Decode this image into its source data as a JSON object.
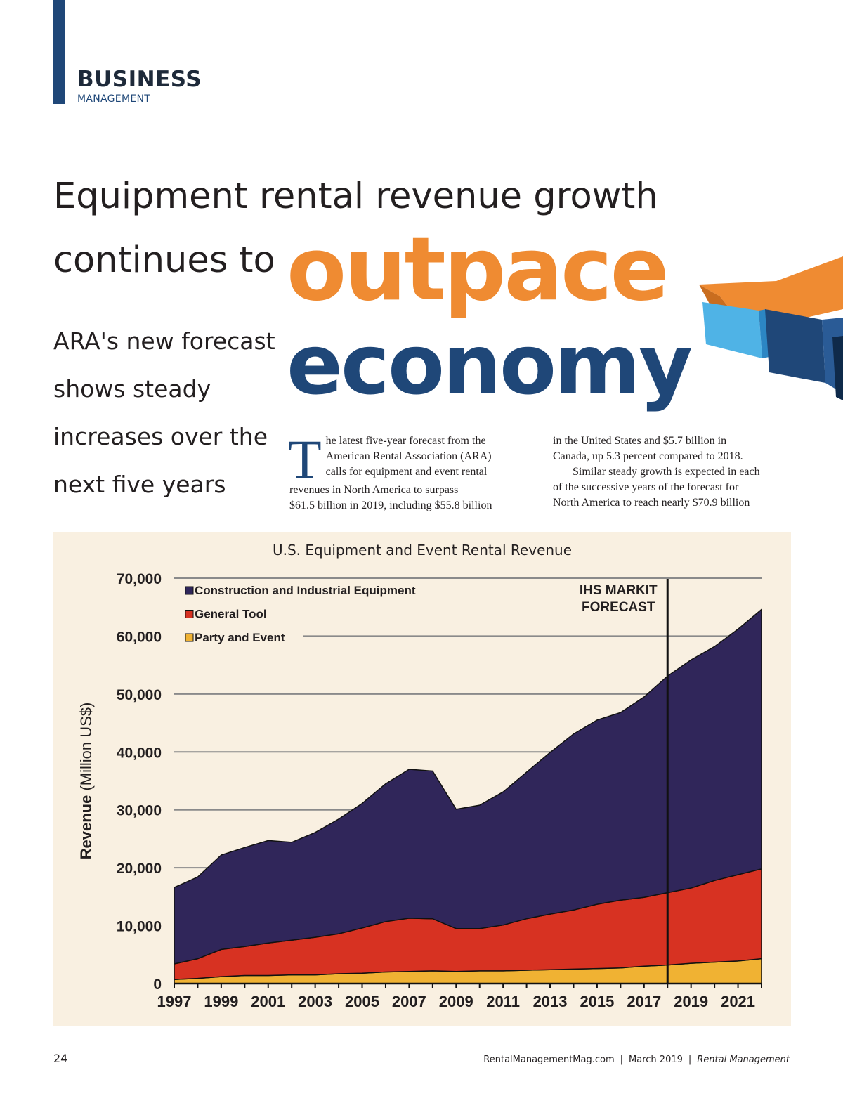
{
  "section": {
    "main": "BUSINESS",
    "sub": "MANAGEMENT"
  },
  "headline": {
    "line1": "Equipment rental revenue growth",
    "line2_prefix": "continues to",
    "highlight_orange": "outpace",
    "highlight_blue": "economy"
  },
  "deck": [
    "ARA's new forecast",
    "shows steady",
    "increases over the",
    "next five years"
  ],
  "body": {
    "dropcap": "T",
    "col1": [
      "he latest five-year forecast from the",
      "American Rental Association (ARA)",
      "calls for equipment and event rental",
      "revenues in North America to surpass",
      "$61.5 billion in 2019, including $55.8 billion"
    ],
    "col2": [
      "in the United States and $5.7 billion in",
      "Canada, up 5.3 percent compared to 2018.",
      "Similar steady growth is expected in each",
      "of the successive years of the forecast for",
      "North America to reach nearly $70.9 billion"
    ]
  },
  "chart_data": {
    "type": "area",
    "stacked": true,
    "title": "U.S. Equipment and Event Rental Revenue",
    "ylabel_bold": "Revenue",
    "ylabel_rest": "(Million US$)",
    "xlabel": "",
    "ylim": [
      0,
      70000
    ],
    "yticks": [
      0,
      10000,
      20000,
      30000,
      40000,
      50000,
      60000,
      70000
    ],
    "ytick_labels": [
      "0",
      "10,000",
      "20,000",
      "30,000",
      "40,000",
      "50,000",
      "60,000",
      "70,000"
    ],
    "xlim": [
      1997,
      2022
    ],
    "xtick_labels": [
      "1997",
      "1999",
      "2001",
      "2003",
      "2005",
      "2007",
      "2009",
      "2011",
      "2013",
      "2015",
      "2017",
      "2019",
      "2021"
    ],
    "grid": true,
    "legend_position": "top-left",
    "x": [
      1997,
      1998,
      1999,
      2000,
      2001,
      2002,
      2003,
      2004,
      2005,
      2006,
      2007,
      2008,
      2009,
      2010,
      2011,
      2012,
      2013,
      2014,
      2015,
      2016,
      2017,
      2018,
      2019,
      2020,
      2021,
      2022
    ],
    "series": [
      {
        "name": "Party and Event",
        "color": "#f0b233",
        "values": [
          700,
          900,
          1200,
          1400,
          1400,
          1500,
          1500,
          1700,
          1800,
          2000,
          2100,
          2200,
          2100,
          2200,
          2200,
          2300,
          2400,
          2500,
          2600,
          2700,
          3000,
          3200,
          3500,
          3700,
          3900,
          4300
        ]
      },
      {
        "name": "General Tool",
        "color": "#d73222",
        "values": [
          2700,
          3400,
          4700,
          5000,
          5600,
          6000,
          6500,
          6900,
          7800,
          8700,
          9200,
          9000,
          7400,
          7300,
          7900,
          8900,
          9600,
          10200,
          11100,
          11700,
          11900,
          12500,
          13000,
          14100,
          14900,
          15500
        ]
      },
      {
        "name": "Construction and Industrial Equipment",
        "color": "#30265a",
        "values": [
          13200,
          14100,
          16300,
          17100,
          17700,
          16900,
          18100,
          19800,
          21500,
          23800,
          25700,
          25500,
          20600,
          21300,
          23000,
          25300,
          27900,
          30400,
          31800,
          32400,
          34600,
          37400,
          39400,
          40400,
          42400,
          44800
        ]
      }
    ],
    "annotation": {
      "line1": "IHS MARKIT",
      "line2": "FORECAST",
      "x": 2018
    }
  },
  "footer": {
    "page": "24",
    "site": "RentalManagementMag.com",
    "date": "March 2019",
    "publication": "Rental Management",
    "sep": "|"
  },
  "colors": {
    "navy": "#1f4778",
    "orange": "#ef8b32",
    "panel": "#f9f0e1"
  }
}
